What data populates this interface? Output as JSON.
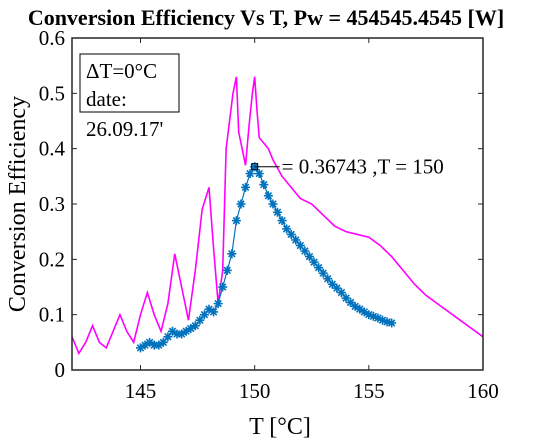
{
  "chart_data": {
    "type": "line",
    "title": "Conversion Efficiency Vs T, Pw = 454545.4545 [W]",
    "xlabel": "T [°C]",
    "ylabel": "Conversion Efficiency",
    "xlim": [
      142,
      160
    ],
    "ylim": [
      0,
      0.6
    ],
    "xticks": [
      "145",
      "150",
      "155",
      "160"
    ],
    "yticks": [
      "0",
      "0.1",
      "0.2",
      "0.3",
      "0.4",
      "0.5",
      "0.6"
    ],
    "grid": false,
    "legend_box": {
      "line1": "ΔT=0°C",
      "line2": "date:"
    },
    "date_text": "26.09.17'",
    "datatip_text": "= 0.36743 ,T = 150",
    "datatip": {
      "x": 150.0,
      "y": 0.36743
    },
    "series": [
      {
        "color": "#FF00FF",
        "marker": "none",
        "x": [
          142.0,
          142.3,
          142.6,
          142.9,
          143.2,
          143.5,
          143.8,
          144.1,
          144.4,
          144.7,
          145.0,
          145.3,
          145.6,
          145.9,
          146.2,
          146.5,
          146.8,
          147.1,
          147.4,
          147.7,
          148.0,
          148.2,
          148.4,
          148.6,
          148.75,
          148.9,
          149.05,
          149.2,
          149.3,
          149.45,
          149.6,
          149.75,
          149.9,
          150.0,
          150.1,
          150.2,
          150.4,
          150.6,
          150.8,
          151.2,
          151.6,
          152.0,
          152.5,
          153.0,
          153.5,
          154.0,
          154.5,
          155.0,
          155.5,
          156.0,
          156.5,
          157.0,
          157.5,
          158.0,
          158.5,
          159.0,
          159.5,
          160.0
        ],
        "y": [
          0.06,
          0.03,
          0.05,
          0.08,
          0.05,
          0.04,
          0.07,
          0.1,
          0.07,
          0.05,
          0.1,
          0.14,
          0.1,
          0.07,
          0.12,
          0.21,
          0.15,
          0.09,
          0.18,
          0.29,
          0.33,
          0.22,
          0.12,
          0.18,
          0.4,
          0.45,
          0.5,
          0.53,
          0.43,
          0.4,
          0.37,
          0.44,
          0.5,
          0.53,
          0.47,
          0.42,
          0.41,
          0.4,
          0.38,
          0.35,
          0.33,
          0.31,
          0.3,
          0.28,
          0.26,
          0.25,
          0.245,
          0.24,
          0.225,
          0.205,
          0.18,
          0.155,
          0.135,
          0.12,
          0.105,
          0.09,
          0.075,
          0.06
        ]
      },
      {
        "color": "#0072BD",
        "marker": "*",
        "x": [
          145.0,
          145.2,
          145.4,
          145.6,
          145.8,
          146.0,
          146.2,
          146.4,
          146.6,
          146.8,
          147.0,
          147.2,
          147.4,
          147.6,
          147.8,
          148.0,
          148.2,
          148.4,
          148.6,
          148.8,
          149.0,
          149.2,
          149.4,
          149.6,
          149.8,
          150.0,
          150.2,
          150.4,
          150.6,
          150.8,
          151.0,
          151.2,
          151.4,
          151.6,
          151.8,
          152.0,
          152.2,
          152.4,
          152.6,
          152.8,
          153.0,
          153.2,
          153.4,
          153.6,
          153.8,
          154.0,
          154.2,
          154.4,
          154.6,
          154.8,
          155.0,
          155.2,
          155.4,
          155.6,
          155.8,
          156.0
        ],
        "y": [
          0.04,
          0.045,
          0.05,
          0.045,
          0.045,
          0.05,
          0.06,
          0.07,
          0.065,
          0.065,
          0.07,
          0.075,
          0.08,
          0.09,
          0.1,
          0.11,
          0.105,
          0.12,
          0.15,
          0.18,
          0.21,
          0.27,
          0.3,
          0.33,
          0.355,
          0.36743,
          0.355,
          0.335,
          0.315,
          0.3,
          0.285,
          0.27,
          0.255,
          0.245,
          0.235,
          0.225,
          0.215,
          0.205,
          0.195,
          0.185,
          0.175,
          0.165,
          0.155,
          0.148,
          0.14,
          0.13,
          0.122,
          0.115,
          0.11,
          0.105,
          0.1,
          0.097,
          0.094,
          0.09,
          0.087,
          0.085
        ]
      }
    ]
  }
}
